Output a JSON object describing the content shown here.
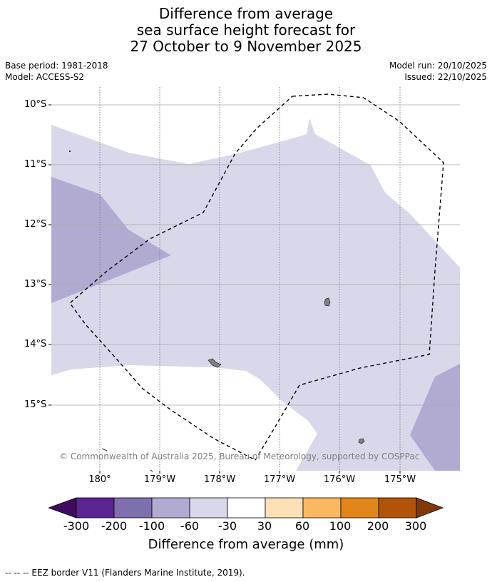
{
  "title": {
    "line1": "Difference from average",
    "line2": "sea surface height forecast for",
    "line3": "27 October to 9 November 2025"
  },
  "meta": {
    "base_period": "Base period: 1981-2018",
    "model": "Model: ACCESS-S2",
    "model_run": "Model run: 20/10/2025",
    "issued": "Issued: 22/10/2025"
  },
  "map": {
    "lat_labels": [
      "10°S",
      "11°S",
      "12°S",
      "13°S",
      "14°S",
      "15°S"
    ],
    "lon_labels": [
      "180°",
      "179°W",
      "178°W",
      "177°W",
      "176°W",
      "175°W"
    ],
    "copyright": "© Commonwealth of Australia 2025, Bureau of Meteorology, supported by COSPPac",
    "colors": {
      "band_-60_-30": "#d8d8ea",
      "band_-100_-60": "#b1abd2",
      "land": "#808080",
      "eez_line": "#000000"
    }
  },
  "colorbar": {
    "ticks": [
      "-300",
      "-200",
      "-100",
      "-60",
      "-30",
      "30",
      "60",
      "100",
      "200",
      "300"
    ],
    "colors": [
      "#3f0a5f",
      "#5a2590",
      "#7f6fac",
      "#b1abd2",
      "#d8d8ea",
      "#ffffff",
      "#fde0b5",
      "#fbb862",
      "#e2851a",
      "#b15409",
      "#803a0a"
    ],
    "label": "Difference from average (mm)"
  },
  "footnote": "--  --  -- EEZ border V11 (Flanders Marine Institute, 2019)."
}
